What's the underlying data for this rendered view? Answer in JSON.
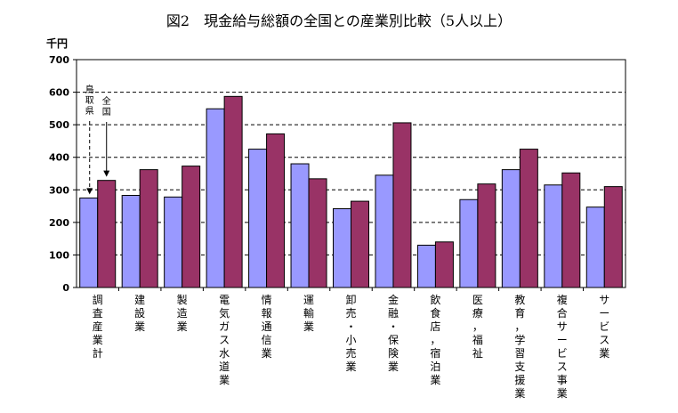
{
  "chart_data": {
    "type": "bar",
    "title": "図2　現金給与総額の全国との産業別比較（5人以上）",
    "unit": "千円",
    "ylim": [
      0,
      700
    ],
    "yticks": [
      0,
      100,
      200,
      300,
      400,
      500,
      600,
      700
    ],
    "grid": true,
    "categories": [
      "調査産業計",
      "建設業",
      "製造業",
      "電気ガス水道業",
      "情報通信業",
      "運輸業",
      "卸売・小売業",
      "金融・保険業",
      "飲食店，宿泊業",
      "医療，福祉",
      "教育，学習支援業",
      "複合サービス事業",
      "サービス業"
    ],
    "series": [
      {
        "name": "鳥取県",
        "color": "#9999ff",
        "values": [
          275,
          283,
          278,
          549,
          425,
          380,
          242,
          345,
          130,
          270,
          362,
          315,
          247
        ]
      },
      {
        "name": "全国",
        "color": "#993366",
        "values": [
          329,
          362,
          373,
          587,
          472,
          334,
          265,
          506,
          140,
          318,
          425,
          352,
          310
        ]
      }
    ],
    "annotations": [
      "鳥取県",
      "全国"
    ]
  }
}
